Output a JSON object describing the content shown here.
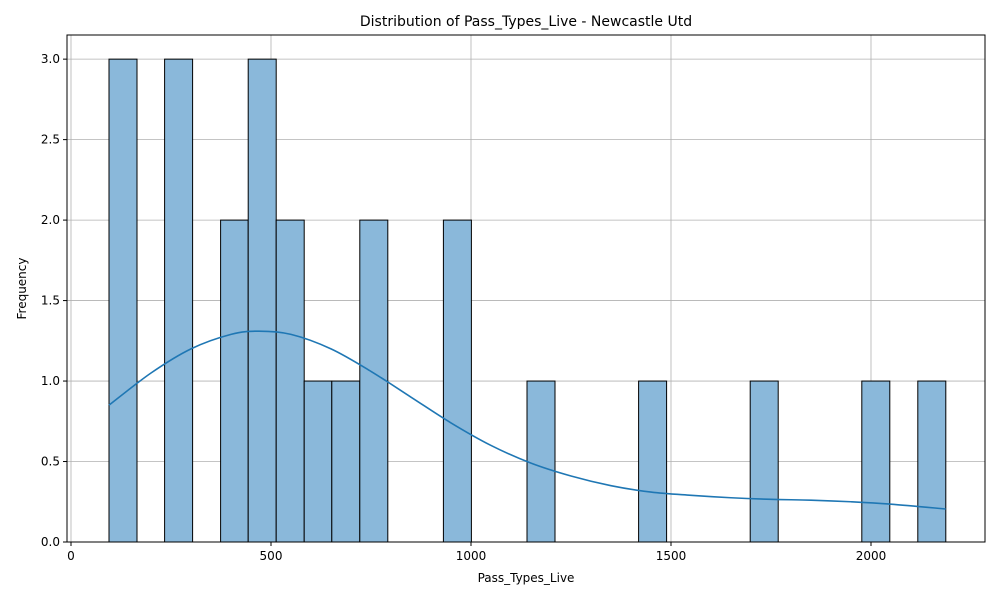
{
  "chart_data": {
    "type": "bar",
    "subtype": "histogram-with-kde",
    "title": "Distribution of Pass_Types_Live - Newcastle Utd",
    "xlabel": "Pass_Types_Live",
    "ylabel": "Frequency",
    "xlim": [
      -10,
      2285
    ],
    "ylim": [
      0,
      3.15
    ],
    "xticks": [
      0,
      500,
      1000,
      1500,
      2000
    ],
    "yticks": [
      0.0,
      0.5,
      1.0,
      1.5,
      2.0,
      2.5,
      3.0
    ],
    "xtick_labels": [
      "0",
      "500",
      "1000",
      "1500",
      "2000"
    ],
    "ytick_labels": [
      "0.0",
      "0.5",
      "1.0",
      "1.5",
      "2.0",
      "2.5",
      "3.0"
    ],
    "grid": true,
    "colors": {
      "bar": "#8ab8da",
      "kde": "#1f77b4",
      "edge": "#000000"
    },
    "bins": [
      {
        "x0": 95,
        "x1": 165,
        "count": 3
      },
      {
        "x0": 234,
        "x1": 304,
        "count": 3
      },
      {
        "x0": 374,
        "x1": 443,
        "count": 2
      },
      {
        "x0": 443,
        "x1": 513,
        "count": 3
      },
      {
        "x0": 513,
        "x1": 583,
        "count": 2
      },
      {
        "x0": 583,
        "x1": 652,
        "count": 1
      },
      {
        "x0": 652,
        "x1": 722,
        "count": 1
      },
      {
        "x0": 722,
        "x1": 792,
        "count": 2
      },
      {
        "x0": 931,
        "x1": 1001,
        "count": 2
      },
      {
        "x0": 1140,
        "x1": 1210,
        "count": 1
      },
      {
        "x0": 1419,
        "x1": 1489,
        "count": 1
      },
      {
        "x0": 1698,
        "x1": 1768,
        "count": 1
      },
      {
        "x0": 1977,
        "x1": 2047,
        "count": 1
      },
      {
        "x0": 2117,
        "x1": 2187,
        "count": 1
      }
    ],
    "kde": {
      "x": [
        95,
        200,
        300,
        400,
        470,
        550,
        650,
        750,
        850,
        950,
        1050,
        1150,
        1250,
        1350,
        1450,
        1550,
        1650,
        1750,
        1850,
        1950,
        2050,
        2187
      ],
      "y": [
        0.85,
        1.05,
        1.2,
        1.29,
        1.31,
        1.29,
        1.2,
        1.06,
        0.9,
        0.74,
        0.6,
        0.49,
        0.41,
        0.35,
        0.31,
        0.29,
        0.275,
        0.265,
        0.26,
        0.25,
        0.235,
        0.205
      ]
    }
  }
}
